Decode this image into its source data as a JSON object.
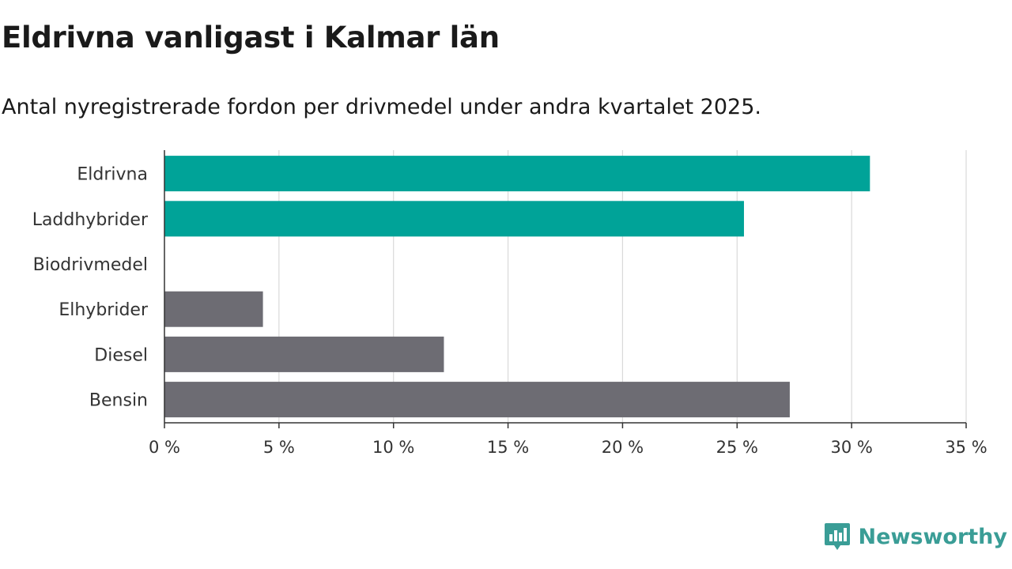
{
  "header": {
    "title": "Eldrivna vanligast i Kalmar län",
    "subtitle": "Antal nyregistrerade fordon per drivmedel under andra kvartalet 2025."
  },
  "brand": {
    "name": "Newsworthy",
    "icon": "newsworthy-logo-icon",
    "color": "#3a9d96"
  },
  "colors": {
    "highlight": "#00a398",
    "other": "#6d6c73",
    "grid": "#d9d9d9",
    "axis": "#333333"
  },
  "chart_data": {
    "type": "bar",
    "orientation": "horizontal",
    "categories": [
      "Eldrivna",
      "Laddhybrider",
      "Biodrivmedel",
      "Elhybrider",
      "Diesel",
      "Bensin"
    ],
    "values": [
      30.8,
      25.3,
      0,
      4.3,
      12.2,
      27.3
    ],
    "highlighted": [
      true,
      true,
      false,
      false,
      false,
      false
    ],
    "xlim": [
      0,
      35
    ],
    "xticks": [
      0,
      5,
      10,
      15,
      20,
      25,
      30,
      35
    ],
    "xtick_labels": [
      "0 %",
      "5 %",
      "10 %",
      "15 %",
      "20 %",
      "25 %",
      "30 %",
      "35 %"
    ],
    "grid": true
  }
}
